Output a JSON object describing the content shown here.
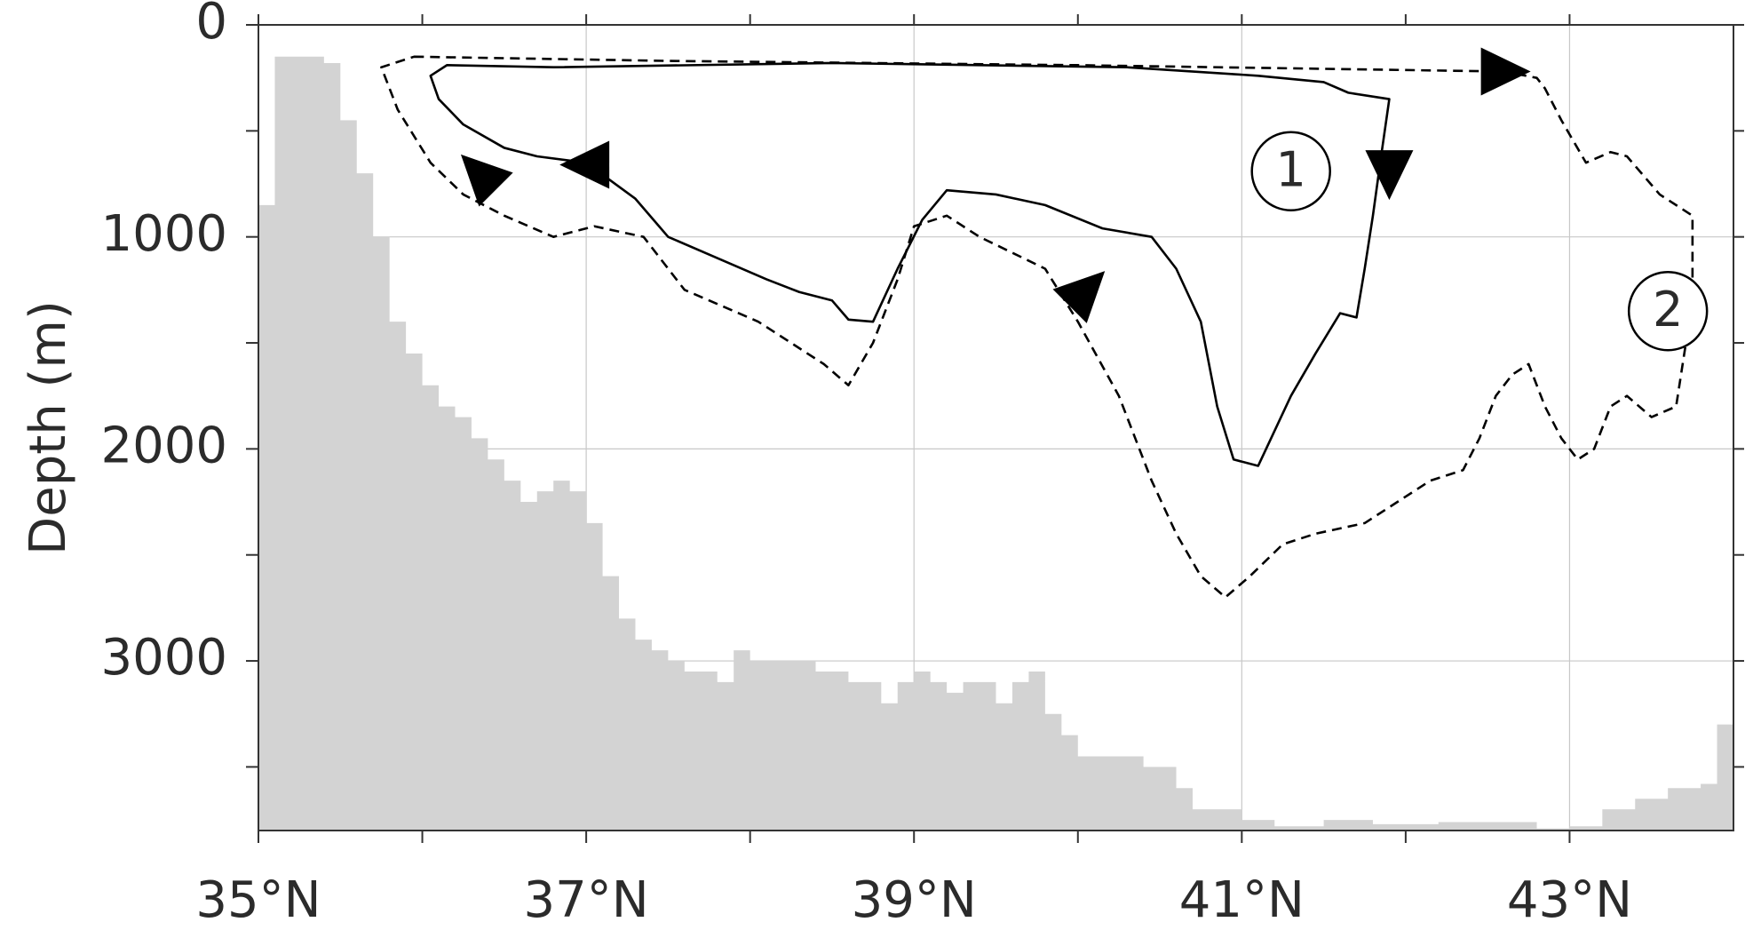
{
  "chart_data": {
    "type": "area",
    "ylabel": "Depth (m)",
    "xlabel": "",
    "xlim": [
      35,
      44
    ],
    "ylim": [
      3800,
      0
    ],
    "y_inverted": true,
    "grid": true,
    "x_ticks": [
      {
        "value": 35,
        "label": "35°N"
      },
      {
        "value": 37,
        "label": "37°N"
      },
      {
        "value": 39,
        "label": "39°N"
      },
      {
        "value": 41,
        "label": "41°N"
      },
      {
        "value": 43,
        "label": "43°N"
      }
    ],
    "x_minor_ticks": [
      36,
      38,
      40,
      42
    ],
    "y_ticks": [
      {
        "value": 0,
        "label": "0"
      },
      {
        "value": 1000,
        "label": "1000"
      },
      {
        "value": 2000,
        "label": "2000"
      },
      {
        "value": 3000,
        "label": "3000"
      }
    ],
    "y_minor_ticks": [
      500,
      1500,
      2500,
      3500
    ],
    "bathymetry": {
      "fill_color": "#d3d3d3",
      "x": [
        35.0,
        35.1,
        35.3,
        35.4,
        35.5,
        35.6,
        35.7,
        35.8,
        35.9,
        36.0,
        36.1,
        36.2,
        36.3,
        36.4,
        36.5,
        36.6,
        36.7,
        36.8,
        36.9,
        37.0,
        37.1,
        37.2,
        37.3,
        37.4,
        37.5,
        37.6,
        37.8,
        37.9,
        38.0,
        38.2,
        38.4,
        38.6,
        38.7,
        38.8,
        38.9,
        39.0,
        39.1,
        39.2,
        39.3,
        39.5,
        39.6,
        39.7,
        39.8,
        39.9,
        40.0,
        40.2,
        40.4,
        40.6,
        40.7,
        40.8,
        41.0,
        41.2,
        41.5,
        41.8,
        42.2,
        42.5,
        42.8,
        43.0,
        43.2,
        43.4,
        43.6,
        43.8,
        43.9,
        44.0
      ],
      "depth": [
        850,
        150,
        150,
        180,
        450,
        700,
        1000,
        1400,
        1550,
        1700,
        1800,
        1850,
        1950,
        2050,
        2150,
        2250,
        2200,
        2150,
        2200,
        2350,
        2600,
        2800,
        2900,
        2950,
        3000,
        3050,
        3100,
        2950,
        3000,
        3000,
        3050,
        3100,
        3100,
        3200,
        3100,
        3050,
        3100,
        3150,
        3100,
        3200,
        3100,
        3050,
        3250,
        3350,
        3450,
        3450,
        3500,
        3600,
        3700,
        3700,
        3750,
        3780,
        3750,
        3770,
        3760,
        3760,
        3790,
        3780,
        3700,
        3650,
        3600,
        3580,
        3300,
        3350
      ]
    },
    "series": [
      {
        "line_style": "solid",
        "color": "#000000",
        "x": [
          36.05,
          36.15,
          36.8,
          38.5,
          40.3,
          41.1,
          41.5,
          41.65,
          41.9,
          41.85,
          41.8,
          41.75,
          41.7,
          41.6,
          41.45,
          41.3,
          41.1,
          40.95,
          40.85,
          40.75,
          40.6,
          40.45,
          40.15,
          39.8,
          39.5,
          39.2,
          39.05,
          38.9,
          38.75,
          38.6,
          38.5,
          38.3,
          38.1,
          37.8,
          37.5,
          37.3,
          37.0,
          36.7,
          36.5,
          36.25,
          36.1,
          36.05
        ],
        "y": [
          240,
          190,
          200,
          180,
          200,
          240,
          270,
          320,
          350,
          620,
          900,
          1150,
          1380,
          1360,
          1550,
          1750,
          2080,
          2050,
          1800,
          1400,
          1150,
          1000,
          960,
          850,
          800,
          780,
          920,
          1150,
          1400,
          1390,
          1300,
          1260,
          1200,
          1100,
          1000,
          820,
          650,
          620,
          580,
          470,
          350,
          240
        ]
      },
      {
        "line_style": "dashed",
        "color": "#000000",
        "x": [
          35.95,
          37.5,
          40.0,
          42.6,
          42.8,
          42.85,
          42.95,
          43.1,
          43.25,
          43.35,
          43.55,
          43.75,
          43.75,
          43.65,
          43.5,
          43.35,
          43.25,
          43.15,
          43.05,
          42.95,
          42.85,
          42.75,
          42.65,
          42.55,
          42.45,
          42.35,
          42.15,
          41.75,
          41.45,
          41.25,
          41.05,
          40.9,
          40.75,
          40.6,
          40.45,
          40.25,
          40.0,
          39.8,
          39.4,
          39.2,
          39.0,
          38.9,
          38.75,
          38.6,
          38.45,
          38.25,
          38.05,
          37.9,
          37.6,
          37.35,
          37.05,
          36.8,
          36.5,
          36.25,
          36.05,
          35.85,
          35.75,
          35.95
        ],
        "y": [
          150,
          170,
          190,
          220,
          250,
          300,
          450,
          650,
          600,
          620,
          800,
          900,
          1300,
          1800,
          1850,
          1750,
          1800,
          2000,
          2050,
          1950,
          1800,
          1600,
          1650,
          1750,
          1950,
          2100,
          2150,
          2350,
          2400,
          2450,
          2600,
          2700,
          2600,
          2400,
          2150,
          1750,
          1400,
          1150,
          1000,
          900,
          950,
          1200,
          1500,
          1700,
          1600,
          1500,
          1400,
          1350,
          1250,
          1000,
          950,
          1000,
          900,
          800,
          650,
          400,
          200,
          150
        ]
      }
    ],
    "annotations": [
      {
        "label": "1",
        "x": 41.3,
        "y": 690
      },
      {
        "label": "2",
        "x": 43.6,
        "y": 1350
      }
    ],
    "arrows": [
      {
        "x": 42.6,
        "y": 220,
        "direction": "right"
      },
      {
        "x": 41.9,
        "y": 700,
        "direction": "down"
      },
      {
        "x": 40.05,
        "y": 1250,
        "direction": "up-right"
      },
      {
        "x": 37.0,
        "y": 660,
        "direction": "left"
      },
      {
        "x": 36.35,
        "y": 700,
        "direction": "up-left"
      }
    ]
  }
}
